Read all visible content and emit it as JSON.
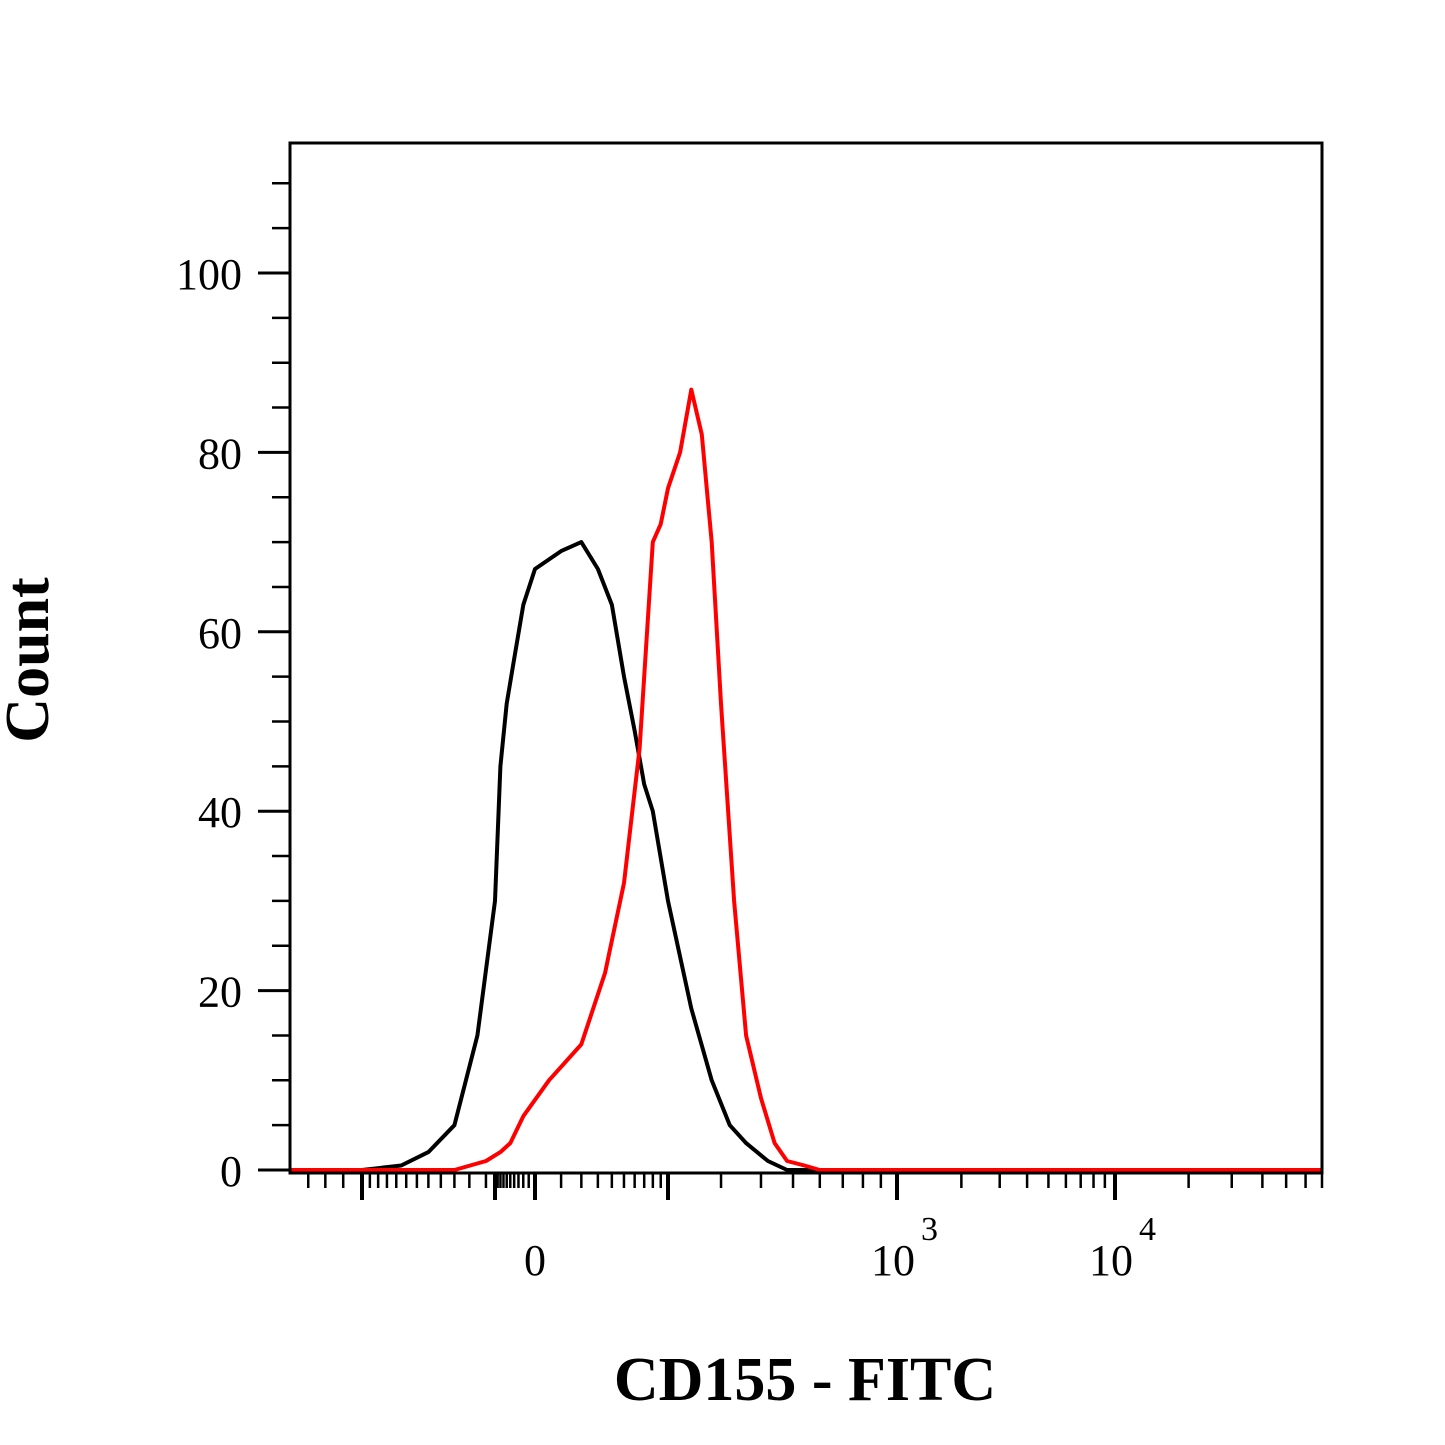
{
  "chart_data": {
    "type": "line",
    "title": "",
    "xlabel": "CD155 - FITC",
    "ylabel": "Count",
    "x_scale": "biexponential (logicle)",
    "ylim": [
      0,
      115
    ],
    "y_ticks": [
      {
        "value": 0,
        "label": "0"
      },
      {
        "value": 20,
        "label": "20"
      },
      {
        "value": 40,
        "label": "40"
      },
      {
        "value": 60,
        "label": "60"
      },
      {
        "value": 80,
        "label": "80"
      },
      {
        "value": 100,
        "label": "100"
      }
    ],
    "x_tick_labels": [
      {
        "value": 0,
        "label": "0"
      },
      {
        "value": 1000,
        "base": "10",
        "exponent": "3"
      },
      {
        "value": 10000,
        "base": "10",
        "exponent": "4"
      }
    ],
    "grid": false,
    "legend": "none",
    "series": [
      {
        "color": "#000000",
        "x": [
          -330,
          -240,
          -190,
          -150,
          -120,
          -100,
          -80,
          -60,
          -40,
          -20,
          0,
          20,
          40,
          60,
          80,
          100,
          120,
          140,
          160,
          200,
          240,
          280,
          320,
          360,
          420,
          480,
          540
        ],
        "y": [
          0,
          0.5,
          2,
          5,
          15,
          30,
          45,
          52,
          57,
          63,
          67,
          69,
          70,
          67,
          63,
          55,
          49,
          43,
          40,
          30,
          18,
          10,
          5,
          3,
          1,
          0,
          0
        ]
      },
      {
        "color": "#ff0000",
        "x": [
          -150,
          -110,
          -80,
          -50,
          -20,
          10,
          40,
          70,
          100,
          130,
          160,
          180,
          200,
          220,
          240,
          260,
          280,
          300,
          330,
          360,
          400,
          440,
          480,
          540,
          600,
          700,
          800
        ],
        "y": [
          0,
          1,
          2,
          3,
          6,
          10,
          14,
          22,
          32,
          47,
          70,
          72,
          76,
          80,
          87,
          82,
          70,
          52,
          30,
          15,
          8,
          3,
          1,
          0.5,
          0,
          0,
          0
        ]
      }
    ]
  }
}
